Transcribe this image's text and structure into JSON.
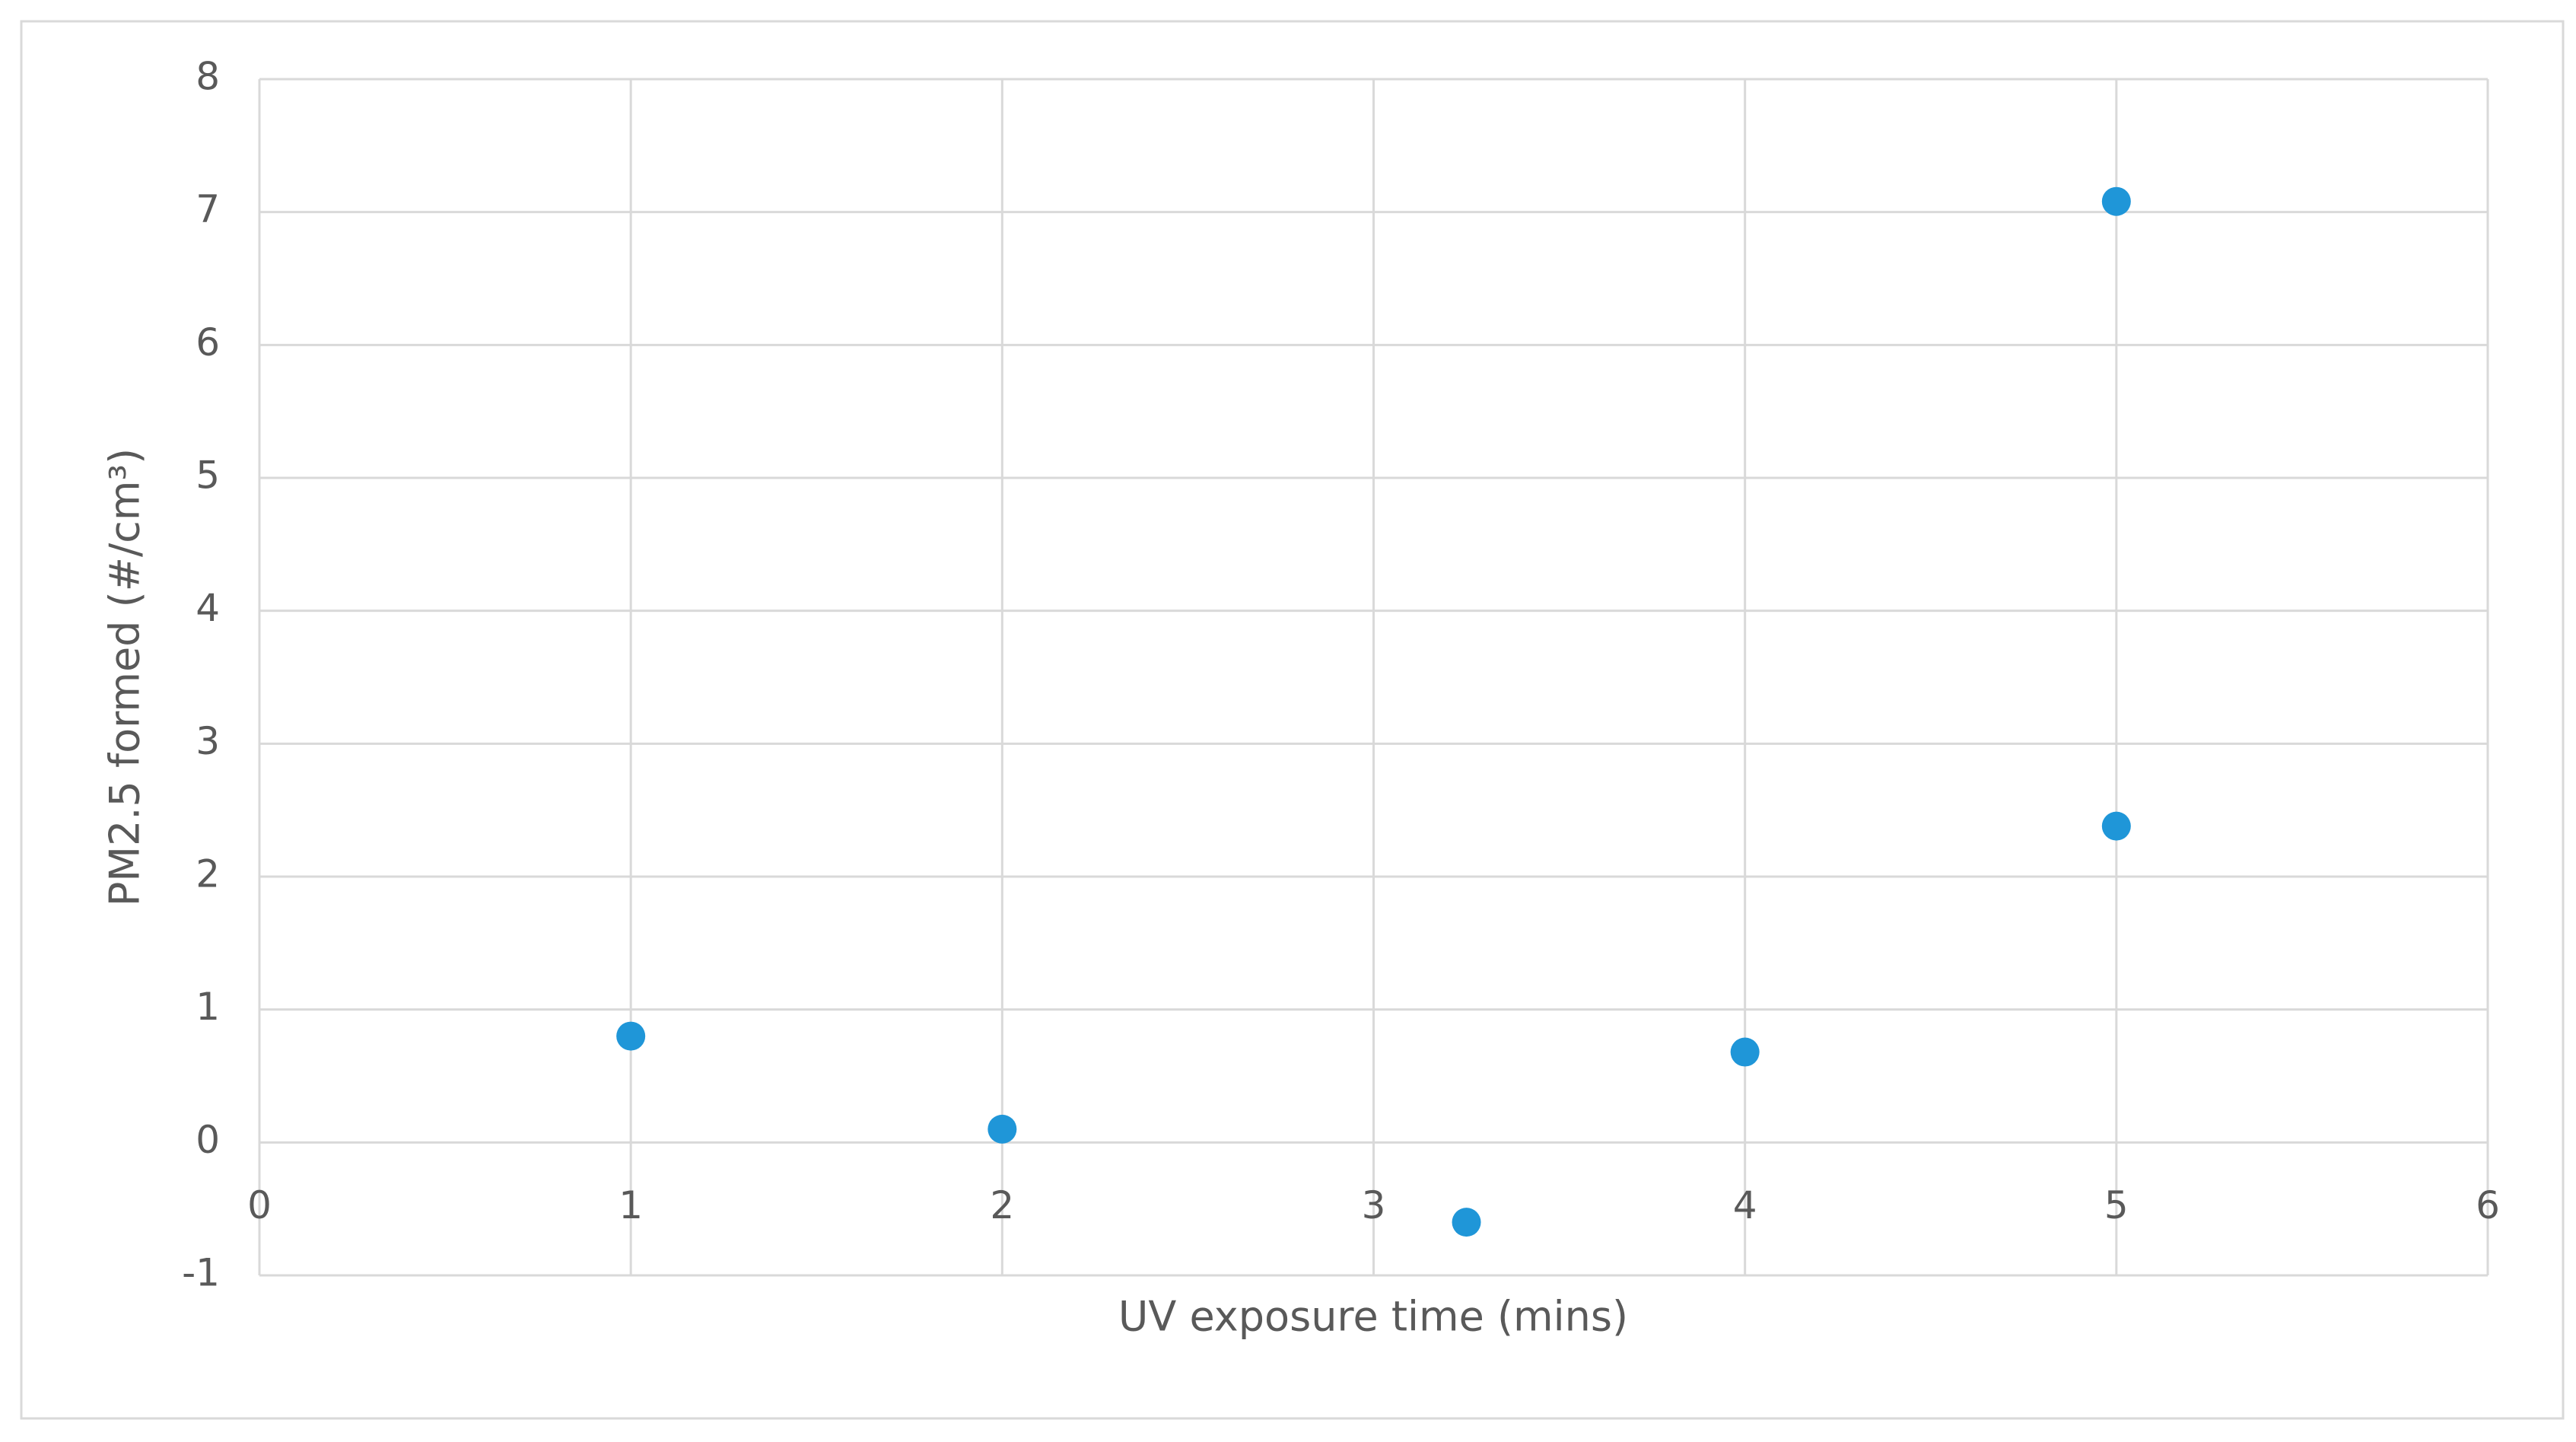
{
  "chart_data": {
    "type": "scatter",
    "x_label": "UV exposure time (mins)",
    "y_label": "PM2.5 formed (#/cm³)",
    "series": [
      {
        "name": "PM2.5",
        "color": "#1f96d8",
        "x": [
          1,
          2,
          3.25,
          4,
          5,
          5
        ],
        "values": [
          0.8,
          0.1,
          -0.6,
          0.68,
          7.08,
          2.38
        ]
      }
    ],
    "xlim": [
      0,
      6
    ],
    "xticks": [
      0,
      1,
      2,
      3,
      4,
      5,
      6
    ],
    "ylim": [
      -1,
      8
    ],
    "yticks": [
      -1,
      0,
      1,
      2,
      3,
      4,
      5,
      6,
      7,
      8
    ],
    "grid": true
  }
}
